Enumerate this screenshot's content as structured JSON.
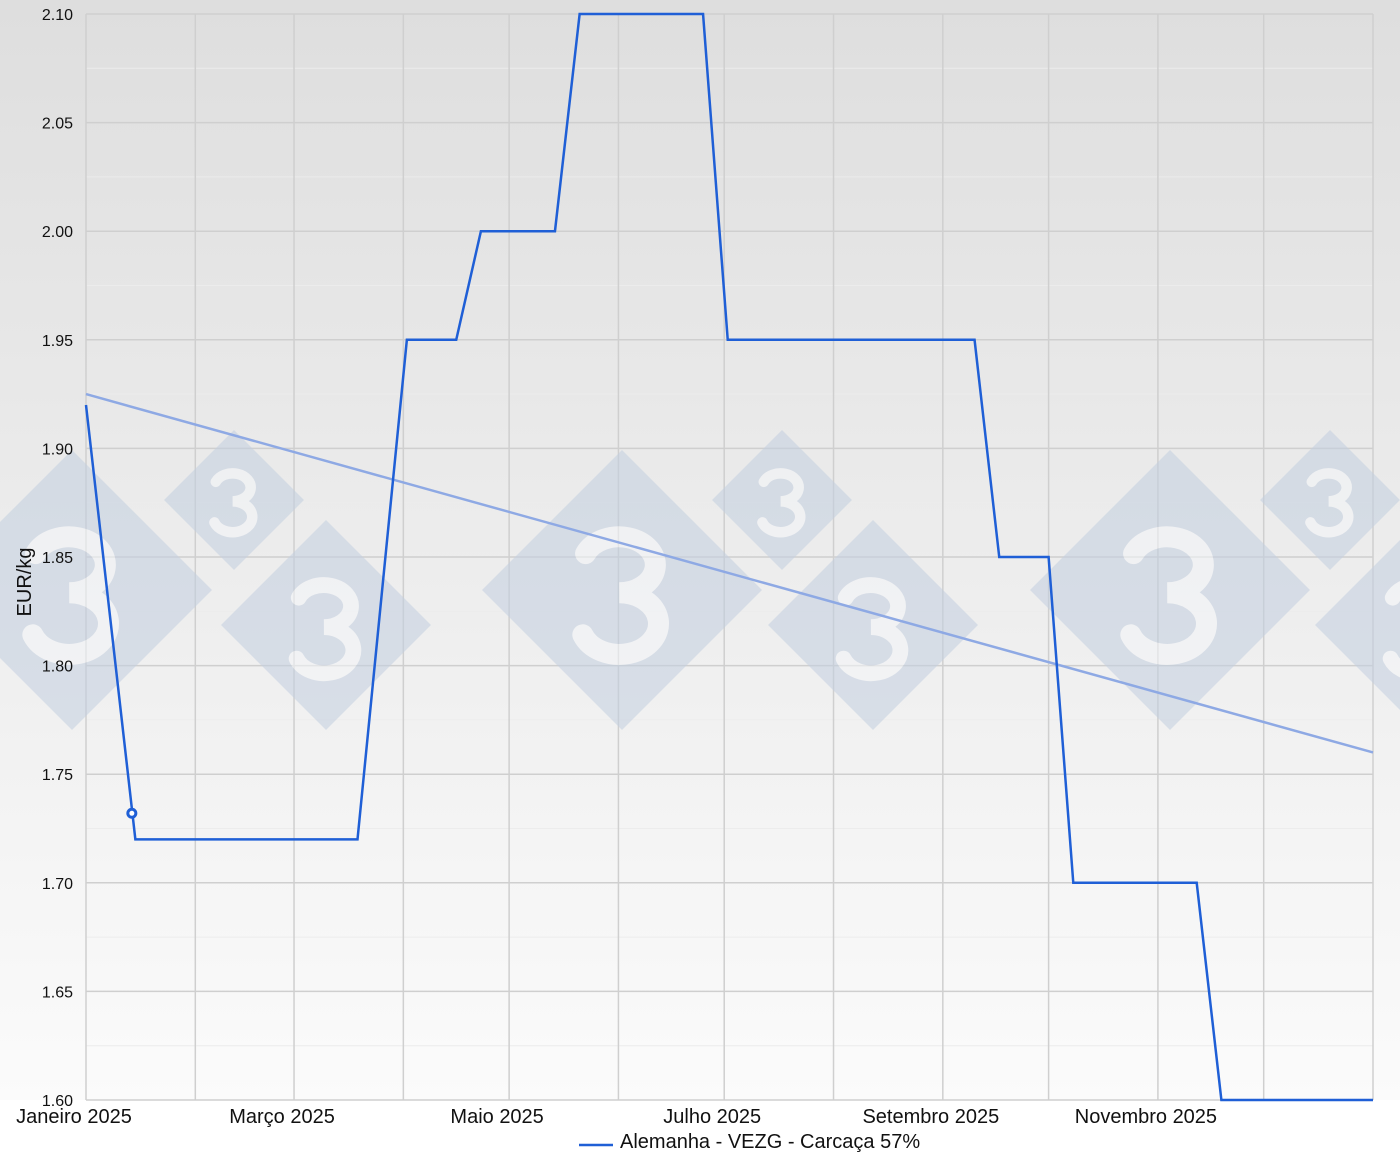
{
  "chart_data": {
    "type": "line",
    "title": "",
    "xlabel": "",
    "ylabel": "EUR/kg",
    "ylim": [
      1.6,
      2.1
    ],
    "xlim": [
      "2025-01-01",
      "2025-12-31"
    ],
    "yticks": [
      "1.60",
      "1.65",
      "1.70",
      "1.75",
      "1.80",
      "1.85",
      "1.90",
      "1.95",
      "2.00",
      "2.05",
      "2.10"
    ],
    "xticks": [
      {
        "date": "2025-01-01",
        "label": "Janeiro 2025"
      },
      {
        "date": "2025-03-01",
        "label": "Março 2025"
      },
      {
        "date": "2025-05-01",
        "label": "Maio 2025"
      },
      {
        "date": "2025-07-01",
        "label": "Julho 2025"
      },
      {
        "date": "2025-09-01",
        "label": "Setembro 2025"
      },
      {
        "date": "2025-11-01",
        "label": "Novembro 2025"
      }
    ],
    "grid": true,
    "legend_position": "bottom",
    "series": [
      {
        "name": "Alemanha - VEZG - Carcaça 57%",
        "color": "#1f5fd6",
        "points": [
          [
            "2025-01-01",
            1.92
          ],
          [
            "2025-01-15",
            1.72
          ],
          [
            "2025-03-19",
            1.72
          ],
          [
            "2025-04-02",
            1.95
          ],
          [
            "2025-04-16",
            1.95
          ],
          [
            "2025-04-23",
            2.0
          ],
          [
            "2025-05-14",
            2.0
          ],
          [
            "2025-05-21",
            2.1
          ],
          [
            "2025-06-25",
            2.1
          ],
          [
            "2025-07-02",
            1.95
          ],
          [
            "2025-09-10",
            1.95
          ],
          [
            "2025-09-17",
            1.85
          ],
          [
            "2025-10-01",
            1.85
          ],
          [
            "2025-10-08",
            1.7
          ],
          [
            "2025-11-12",
            1.7
          ],
          [
            "2025-11-19",
            1.6
          ],
          [
            "2025-12-31",
            1.6
          ]
        ]
      }
    ],
    "trendline": {
      "color": "#8ea9e4",
      "points": [
        [
          "2025-01-01",
          1.925
        ],
        [
          "2025-12-31",
          1.76
        ]
      ]
    },
    "highlighted_point": {
      "date": "2025-01-14",
      "value": 1.732
    }
  },
  "watermark": "3"
}
